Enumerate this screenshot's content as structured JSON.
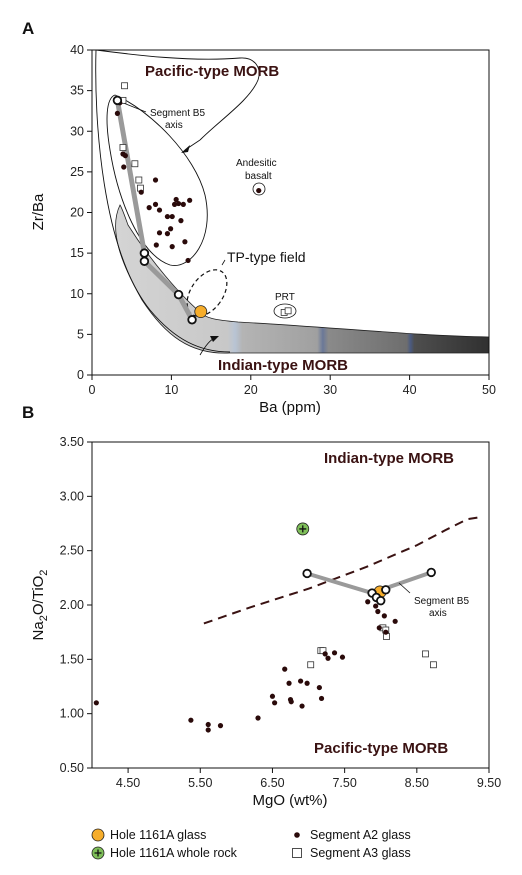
{
  "chart_data": [
    {
      "panel": "A",
      "type": "scatter",
      "xlabel": "Ba (ppm)",
      "ylabel": "Zr/Ba",
      "xlim": [
        0,
        50
      ],
      "ylim": [
        0,
        40
      ],
      "xticks": [
        "0",
        "10",
        "20",
        "30",
        "40",
        "50"
      ],
      "yticks": [
        "0",
        "5",
        "10",
        "15",
        "20",
        "25",
        "30",
        "35",
        "40"
      ],
      "annotations": {
        "pacific": "Pacific-type MORB",
        "indian": "Indian-type MORB",
        "tp": "TP-type field",
        "segment_b5_line1": "Segment B5",
        "segment_b5_line2": "axis",
        "andesitic_line1": "Andesitic",
        "andesitic_line2": "basalt",
        "prt": "PRT"
      },
      "series": [
        {
          "name": "Segment A2 glass",
          "points": [
            [
              3.2,
              32.2
            ],
            [
              3.5,
              33.5
            ],
            [
              3.9,
              27.2
            ],
            [
              4.0,
              25.6
            ],
            [
              4.2,
              27.0
            ],
            [
              6.2,
              22.5
            ],
            [
              7.2,
              20.6
            ],
            [
              8.0,
              24.0
            ],
            [
              8.0,
              21.0
            ],
            [
              8.5,
              20.3
            ],
            [
              8.1,
              16.0
            ],
            [
              8.5,
              17.5
            ],
            [
              9.5,
              19.5
            ],
            [
              9.5,
              17.4
            ],
            [
              9.9,
              18.0
            ],
            [
              10.1,
              15.8
            ],
            [
              10.1,
              19.5
            ],
            [
              10.4,
              21.0
            ],
            [
              10.6,
              21.6
            ],
            [
              10.9,
              21.1
            ],
            [
              11.5,
              21.0
            ],
            [
              11.2,
              19.0
            ],
            [
              11.7,
              16.4
            ],
            [
              12.1,
              14.1
            ],
            [
              12.3,
              21.5
            ],
            [
              6.6,
              14.6
            ]
          ]
        },
        {
          "name": "Segment A3 glass",
          "points": [
            [
              4.1,
              35.6
            ],
            [
              3.9,
              33.8
            ],
            [
              3.9,
              28.0
            ],
            [
              5.4,
              26.0
            ],
            [
              5.9,
              24.0
            ],
            [
              6.1,
              23.0
            ],
            [
              24.2,
              7.7
            ],
            [
              24.7,
              7.9
            ]
          ]
        },
        {
          "name": "Segment B5 axis",
          "points": [
            [
              3.2,
              33.8
            ],
            [
              6.6,
              15.0
            ],
            [
              6.6,
              14.0
            ],
            [
              10.9,
              9.9
            ],
            [
              12.6,
              6.8
            ]
          ]
        },
        {
          "name": "Hole 1161A glass",
          "points": [
            [
              13.7,
              7.8
            ]
          ]
        },
        {
          "name": "Andesitic basalt",
          "points": [
            [
              21.0,
              22.7
            ]
          ]
        }
      ]
    },
    {
      "panel": "B",
      "type": "scatter",
      "xlabel": "MgO (wt%)",
      "ylabel": "Na2O/TiO2",
      "xlim": [
        4.0,
        9.5
      ],
      "ylim": [
        0.5,
        3.5
      ],
      "xticks": [
        "4.50",
        "5.50",
        "6.50",
        "7.50",
        "8.50",
        "9.50"
      ],
      "yticks": [
        "0.50",
        "1.00",
        "1.50",
        "2.00",
        "2.50",
        "3.00",
        "3.50"
      ],
      "annotations": {
        "indian": "Indian-type MORB",
        "pacific": "Pacific-type MORB",
        "segment_b5_line1": "Segment B5",
        "segment_b5_line2": "axis"
      },
      "boundary_line": [
        [
          5.55,
          1.83
        ],
        [
          6.2,
          1.98
        ],
        [
          7.0,
          2.15
        ],
        [
          7.8,
          2.35
        ],
        [
          8.5,
          2.55
        ],
        [
          8.9,
          2.69
        ],
        [
          9.2,
          2.79
        ],
        [
          9.4,
          2.81
        ]
      ],
      "series": [
        {
          "name": "Segment A2 glass",
          "points": [
            [
              4.06,
              1.1
            ],
            [
              5.37,
              0.94
            ],
            [
              5.61,
              0.85
            ],
            [
              5.61,
              0.9
            ],
            [
              5.78,
              0.89
            ],
            [
              6.3,
              0.96
            ],
            [
              6.5,
              1.16
            ],
            [
              6.53,
              1.1
            ],
            [
              6.67,
              1.41
            ],
            [
              6.73,
              1.28
            ],
            [
              6.75,
              1.13
            ],
            [
              6.76,
              1.11
            ],
            [
              6.91,
              1.07
            ],
            [
              6.89,
              1.3
            ],
            [
              6.98,
              1.28
            ],
            [
              7.15,
              1.24
            ],
            [
              7.18,
              1.14
            ],
            [
              7.23,
              1.55
            ],
            [
              7.27,
              1.51
            ],
            [
              7.36,
              1.56
            ],
            [
              7.47,
              1.52
            ],
            [
              7.82,
              2.03
            ],
            [
              7.93,
              1.99
            ],
            [
              7.96,
              1.94
            ],
            [
              7.98,
              1.79
            ],
            [
              8.05,
              1.9
            ],
            [
              8.07,
              1.75
            ],
            [
              8.2,
              1.85
            ]
          ]
        },
        {
          "name": "Segment A3 glass",
          "points": [
            [
              7.03,
              1.45
            ],
            [
              7.17,
              1.58
            ],
            [
              7.2,
              1.58
            ],
            [
              8.03,
              1.79
            ],
            [
              8.07,
              1.77
            ],
            [
              8.08,
              1.71
            ],
            [
              8.62,
              1.55
            ],
            [
              8.73,
              1.45
            ]
          ]
        },
        {
          "name": "Segment B5 axis",
          "points": [
            [
              6.98,
              2.29
            ],
            [
              7.88,
              2.11
            ],
            [
              7.94,
              2.07
            ],
            [
              8.0,
              2.04
            ],
            [
              8.07,
              2.14
            ],
            [
              8.7,
              2.3
            ]
          ]
        },
        {
          "name": "Hole 1161A glass",
          "points": [
            [
              7.99,
              2.12
            ]
          ]
        },
        {
          "name": "Hole 1161A whole rock",
          "points": [
            [
              6.92,
              2.7
            ]
          ]
        }
      ]
    }
  ],
  "legend": {
    "items": [
      {
        "label": "Hole 1161A glass",
        "symbol": "orange-circle"
      },
      {
        "label": "Segment A2 glass",
        "symbol": "black-dot"
      },
      {
        "label": "Hole 1161A whole rock",
        "symbol": "green-plus-circle"
      },
      {
        "label": "Segment A3 glass",
        "symbol": "open-square"
      }
    ]
  },
  "colors": {
    "a2_dot": "#2a0a0a",
    "orange": "#f6ad2b",
    "green": "#7fbf5a",
    "b5_line": "#9a9a9a",
    "field_label": "#3a1212",
    "dashed": "#3a1212"
  }
}
